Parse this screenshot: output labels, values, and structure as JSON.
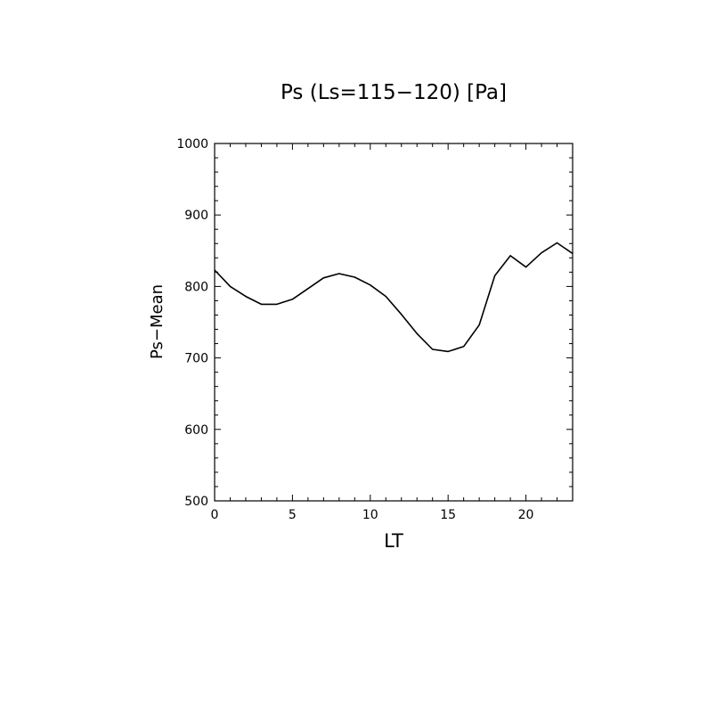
{
  "chart_data": {
    "type": "line",
    "title": "Ps (Ls=115−120) [Pa]",
    "xlabel": "LT",
    "ylabel": "Ps−Mean",
    "xlim": [
      0,
      23
    ],
    "ylim": [
      500,
      1000
    ],
    "x_ticks": [
      0,
      5,
      10,
      15,
      20
    ],
    "y_ticks": [
      500,
      600,
      700,
      800,
      900,
      1000
    ],
    "x_tick_labels": [
      "0",
      "5",
      "10",
      "15",
      "20"
    ],
    "y_tick_labels": [
      "500",
      "600",
      "700",
      "800",
      "900",
      "1000"
    ],
    "grid": false,
    "series": [
      {
        "x": [
          0,
          1,
          2,
          3,
          4,
          5,
          6,
          7,
          8,
          9,
          10,
          11,
          12,
          13,
          14,
          15,
          16,
          17,
          18,
          19,
          20,
          21,
          22,
          23
        ],
        "y": [
          823,
          800,
          786,
          775,
          775,
          782,
          797,
          812,
          818,
          813,
          802,
          786,
          761,
          734,
          712,
          709,
          716,
          746,
          815,
          843,
          827,
          847,
          861,
          846
        ],
        "color": "#000000"
      }
    ]
  }
}
